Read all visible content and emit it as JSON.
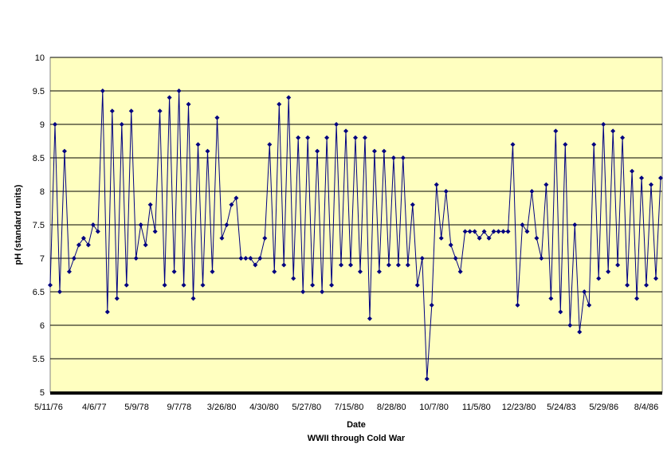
{
  "chart_data": {
    "type": "line",
    "title": "",
    "xlabel": "Date",
    "subtitle": "WWII through Cold War",
    "ylabel": "pH (standard units)",
    "ylim": [
      5,
      10
    ],
    "y_ticks": [
      "5",
      "5.5",
      "6",
      "6.5",
      "7",
      "7.5",
      "8",
      "8.5",
      "9",
      "9.5",
      "10"
    ],
    "x_tick_labels": [
      "5/11/76",
      "4/6/77",
      "5/9/78",
      "9/7/78",
      "3/26/80",
      "4/30/80",
      "5/27/80",
      "7/15/80",
      "8/28/80",
      "10/7/80",
      "11/5/80",
      "12/23/80",
      "5/24/83",
      "5/29/86",
      "8/4/86"
    ],
    "grid": true,
    "legend": "none",
    "colors": {
      "plot_background": "#ffffc0",
      "series": "#000080",
      "grid": "#000000"
    },
    "series": [
      {
        "marker": "diamond",
        "x": [
          0,
          6,
          12,
          18,
          24,
          30,
          36,
          42,
          48,
          54,
          60,
          66,
          72,
          78,
          84,
          90,
          96,
          102,
          108,
          114,
          120,
          126,
          132,
          138,
          144,
          150,
          156,
          162,
          168,
          174,
          180,
          186,
          192,
          198,
          204,
          210,
          216,
          222,
          228,
          234,
          240,
          246,
          252,
          258,
          264,
          270,
          276,
          282,
          288,
          294,
          300,
          306,
          312,
          318,
          324,
          330,
          336,
          342,
          348,
          354,
          360,
          366,
          372,
          378,
          384,
          390,
          396,
          402,
          408,
          414,
          420,
          426,
          432,
          438,
          444,
          450,
          456,
          462,
          468,
          474,
          480,
          486,
          492,
          498,
          504,
          510,
          516,
          522,
          528,
          534,
          540,
          546,
          552,
          558,
          564,
          570,
          576,
          582,
          588,
          594,
          600,
          606,
          612,
          618,
          624,
          630,
          636,
          642,
          648,
          654,
          660,
          666,
          672,
          678,
          684,
          690,
          696,
          702,
          708,
          714,
          720,
          726,
          732,
          738,
          744,
          750,
          756,
          762,
          768
        ],
        "values": [
          6.6,
          9.0,
          6.5,
          8.6,
          6.8,
          7.0,
          7.2,
          7.3,
          7.2,
          7.5,
          7.4,
          9.5,
          6.2,
          9.2,
          6.4,
          9.0,
          6.6,
          9.2,
          7.0,
          7.5,
          7.2,
          7.8,
          7.4,
          9.2,
          6.6,
          9.4,
          6.8,
          9.5,
          6.6,
          9.3,
          6.4,
          8.7,
          6.6,
          8.6,
          6.8,
          9.1,
          7.3,
          7.5,
          7.8,
          7.9,
          7.0,
          7.0,
          7.0,
          6.9,
          7.0,
          7.3,
          8.7,
          6.8,
          9.3,
          6.9,
          9.4,
          6.7,
          8.8,
          6.5,
          8.8,
          6.6,
          8.6,
          6.5,
          8.8,
          6.6,
          9.0,
          6.9,
          8.9,
          6.9,
          8.8,
          6.8,
          8.8,
          6.1,
          8.6,
          6.8,
          8.6,
          6.9,
          8.5,
          6.9,
          8.5,
          6.9,
          7.8,
          6.6,
          7.0,
          5.2,
          6.3,
          8.1,
          7.3,
          8.0,
          7.2,
          7.0,
          6.8,
          7.4,
          7.4,
          7.4,
          7.3,
          7.4,
          7.3,
          7.4,
          7.4,
          7.4,
          7.4,
          8.7,
          6.3,
          7.5,
          7.4,
          8.0,
          7.3,
          7.0,
          8.1,
          6.4,
          8.9,
          6.2,
          8.7,
          6.0,
          7.5,
          5.9,
          6.5,
          6.3,
          8.7,
          6.7,
          9.0,
          6.8,
          8.9,
          6.9,
          8.8,
          6.6,
          8.3,
          6.4,
          8.2,
          6.6,
          8.1,
          6.7,
          8.2
        ]
      }
    ]
  }
}
